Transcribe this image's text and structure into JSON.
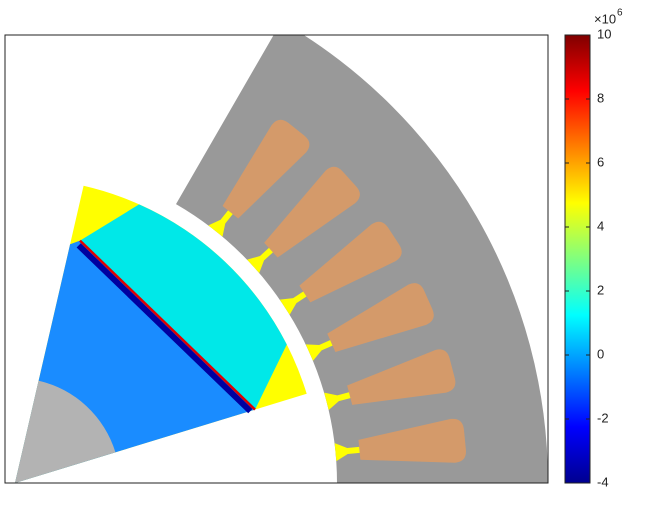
{
  "chart_data": {
    "type": "field",
    "colorbar": {
      "clim": [
        -4,
        10
      ],
      "ticks": [
        -4,
        -2,
        0,
        2,
        4,
        6,
        8,
        10
      ],
      "multiplier": "×10",
      "multiplier_power": "6"
    }
  }
}
